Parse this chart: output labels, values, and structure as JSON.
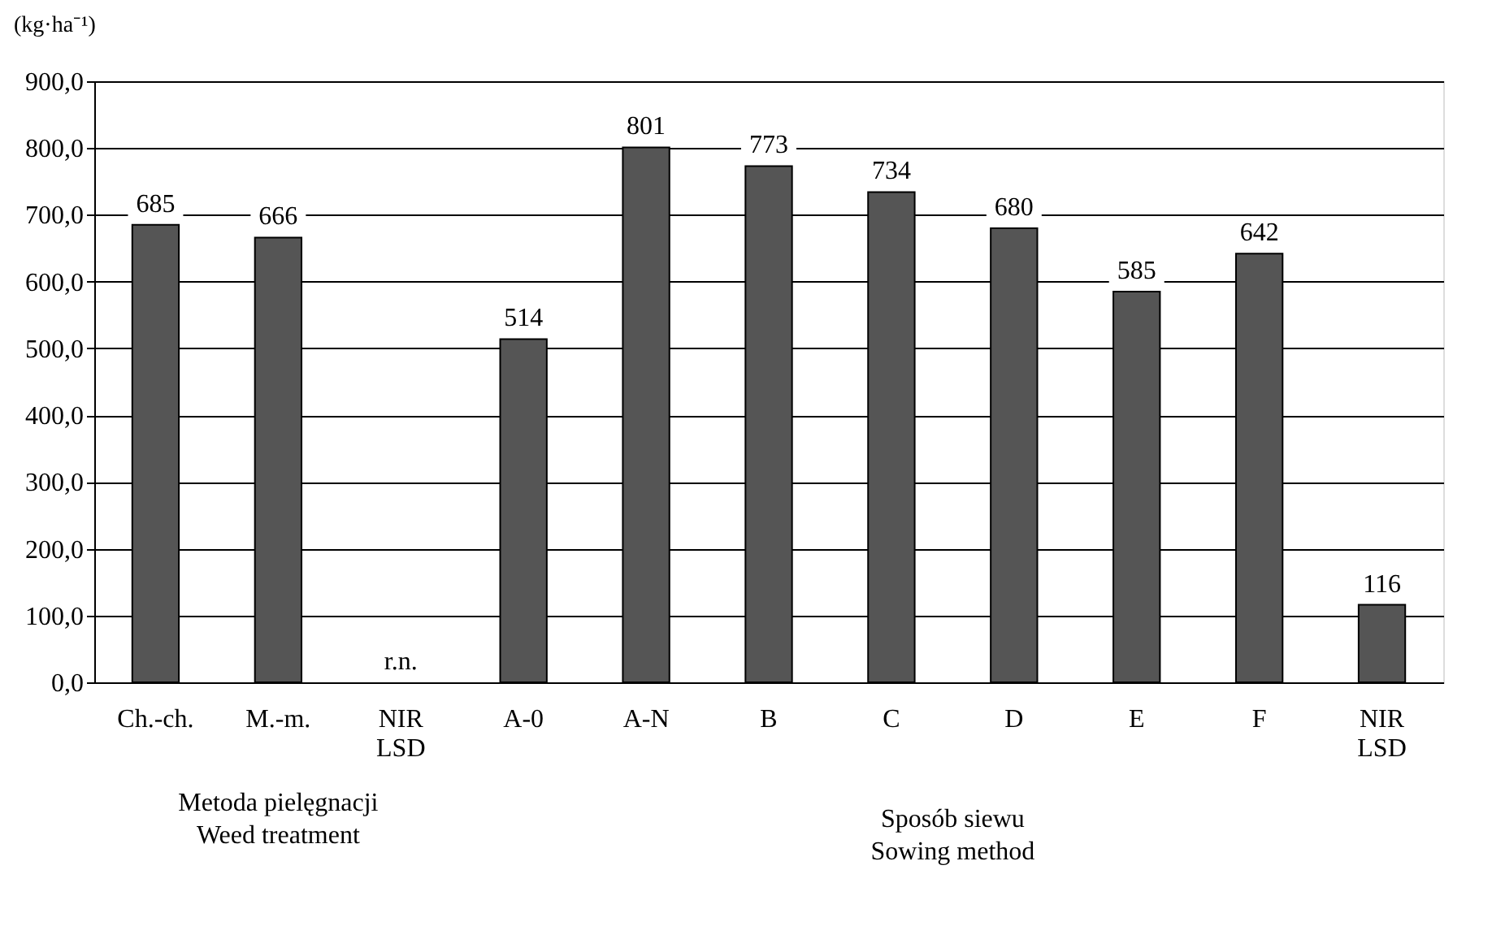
{
  "chart_data": {
    "type": "bar",
    "ylabel": "(kg·ha⁻¹)",
    "categories": [
      "Ch.-ch.",
      "M.-m.",
      "NIR LSD",
      "A-0",
      "A-N",
      "B",
      "C",
      "D",
      "E",
      "F",
      "NIR LSD"
    ],
    "values": [
      685,
      666,
      null,
      514,
      801,
      773,
      734,
      680,
      585,
      642,
      116
    ],
    "value_labels": [
      "685",
      "666",
      "r.n.",
      "514",
      "801",
      "773",
      "734",
      "680",
      "585",
      "642",
      "116"
    ],
    "color": "#555555",
    "ylim": [
      0,
      900
    ],
    "yticks": [
      {
        "value": 0,
        "label": "0,0"
      },
      {
        "value": 100,
        "label": "100,0"
      },
      {
        "value": 200,
        "label": "200,0"
      },
      {
        "value": 300,
        "label": "300,0"
      },
      {
        "value": 400,
        "label": "400,0"
      },
      {
        "value": 500,
        "label": "500,0"
      },
      {
        "value": 600,
        "label": "600,0"
      },
      {
        "value": 700,
        "label": "700,0"
      },
      {
        "value": 800,
        "label": "800,0"
      },
      {
        "value": 900,
        "label": "900,0"
      }
    ],
    "grid": "y",
    "annotations": [
      "Metoda pielęgnacji\nWeed treatment",
      "Sposób siewu\nSowing method"
    ]
  }
}
